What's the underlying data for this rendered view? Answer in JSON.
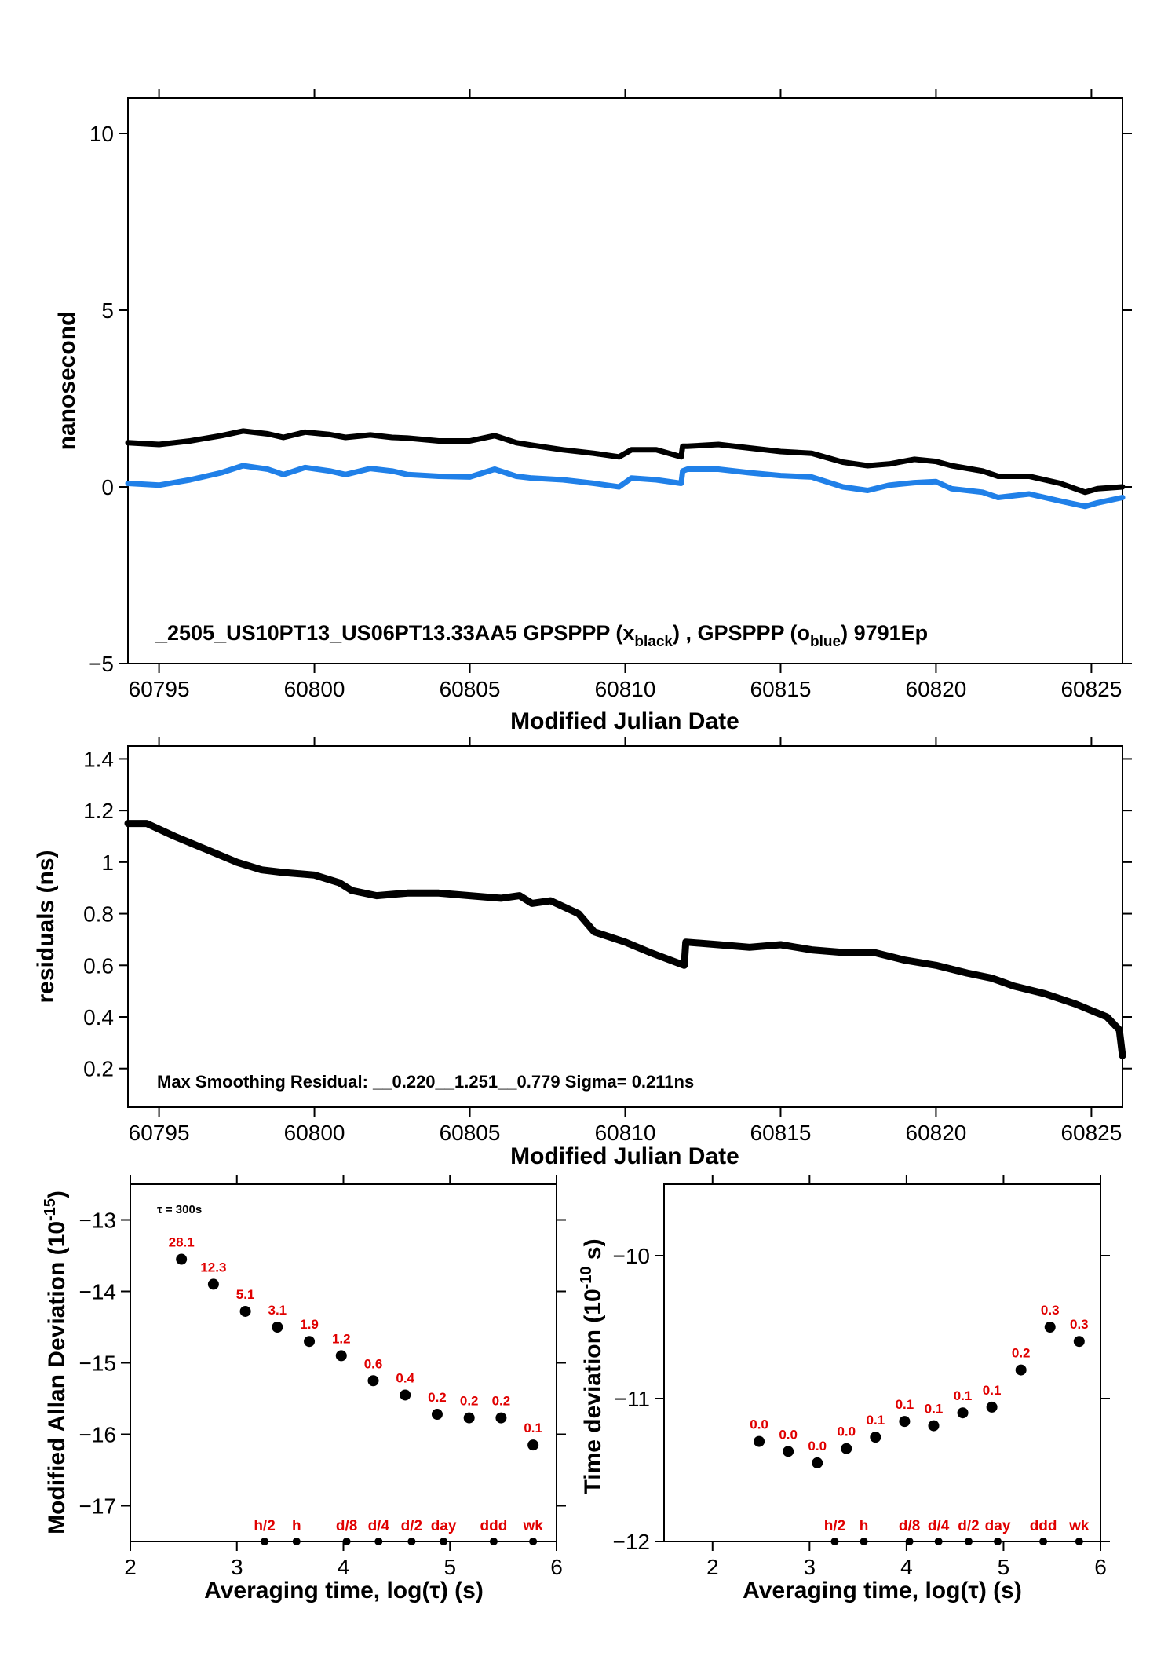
{
  "chart_data": [
    {
      "type": "line",
      "ylabel": "nanosecond",
      "xlabel": "Modified Julian Date",
      "xlim": [
        60794.0,
        60826.0
      ],
      "ylim": [
        -5,
        11
      ],
      "xticks": [
        60795,
        60800,
        60805,
        60810,
        60815,
        60820,
        60825
      ],
      "yticks": [
        -5,
        0,
        5,
        10
      ],
      "annotation_prefix": "_2505_US10PT13_US06PT13.33AA5     GPSPPP (x",
      "annotation_sub1": "black",
      "annotation_mid": ") ,  GPSPPP (o",
      "annotation_sub2": "blue",
      "annotation_suffix": ")  9791Ep",
      "series": [
        {
          "color": "#000000",
          "x": [
            60794.0,
            60795.0,
            60796.0,
            60797.0,
            60797.7,
            60798.5,
            60799.0,
            60799.7,
            60800.5,
            60801.0,
            60801.8,
            60802.5,
            60803.0,
            60804.0,
            60805.0,
            60805.8,
            60806.5,
            60807.0,
            60808.0,
            60809.0,
            60809.8,
            60810.2,
            60811.0,
            60811.8,
            60811.85,
            60812.0,
            60813.0,
            60814.0,
            60815.0,
            60816.0,
            60817.0,
            60817.8,
            60818.5,
            60819.3,
            60820.0,
            60820.5,
            60821.5,
            60822.0,
            60823.0,
            60824.0,
            60824.8,
            60825.2,
            60826.0
          ],
          "y": [
            1.25,
            1.2,
            1.3,
            1.45,
            1.58,
            1.5,
            1.4,
            1.55,
            1.48,
            1.4,
            1.47,
            1.4,
            1.38,
            1.3,
            1.3,
            1.45,
            1.25,
            1.18,
            1.05,
            0.95,
            0.85,
            1.05,
            1.05,
            0.85,
            1.15,
            1.15,
            1.2,
            1.1,
            1.0,
            0.95,
            0.7,
            0.6,
            0.65,
            0.78,
            0.72,
            0.6,
            0.45,
            0.3,
            0.3,
            0.1,
            -0.15,
            -0.05,
            0.0
          ]
        },
        {
          "color": "#2080e8",
          "x": [
            60794.0,
            60795.0,
            60796.0,
            60797.0,
            60797.7,
            60798.5,
            60799.0,
            60799.7,
            60800.5,
            60801.0,
            60801.8,
            60802.5,
            60803.0,
            60804.0,
            60805.0,
            60805.8,
            60806.5,
            60807.0,
            60808.0,
            60809.0,
            60809.8,
            60810.2,
            60811.0,
            60811.8,
            60811.85,
            60812.0,
            60813.0,
            60814.0,
            60815.0,
            60816.0,
            60817.0,
            60817.8,
            60818.5,
            60819.3,
            60820.0,
            60820.5,
            60821.5,
            60822.0,
            60823.0,
            60824.0,
            60824.8,
            60825.2,
            60826.0
          ],
          "y": [
            0.1,
            0.05,
            0.2,
            0.4,
            0.6,
            0.5,
            0.35,
            0.55,
            0.45,
            0.35,
            0.52,
            0.45,
            0.35,
            0.3,
            0.28,
            0.5,
            0.3,
            0.25,
            0.2,
            0.1,
            0.0,
            0.25,
            0.2,
            0.1,
            0.45,
            0.5,
            0.5,
            0.4,
            0.32,
            0.28,
            0.0,
            -0.1,
            0.05,
            0.12,
            0.15,
            -0.05,
            -0.15,
            -0.3,
            -0.2,
            -0.4,
            -0.55,
            -0.45,
            -0.3
          ]
        }
      ]
    },
    {
      "type": "line",
      "ylabel": "residuals (ns)",
      "xlabel": "Modified Julian Date",
      "xlim": [
        60794.0,
        60826.0
      ],
      "ylim": [
        0.05,
        1.45
      ],
      "xticks": [
        60795,
        60800,
        60805,
        60810,
        60815,
        60820,
        60825
      ],
      "yticks": [
        0.2,
        0.4,
        0.6,
        0.8,
        1.0,
        1.2,
        1.4
      ],
      "annotation": "Max Smoothing Residual: __0.220__1.251__0.779  Sigma= 0.211ns",
      "series": [
        {
          "color": "#000000",
          "x": [
            60794.0,
            60794.6,
            60795.5,
            60796.5,
            60797.5,
            60798.3,
            60799.0,
            60800.0,
            60800.8,
            60801.2,
            60802.0,
            60803.0,
            60804.0,
            60805.0,
            60806.0,
            60806.6,
            60807.0,
            60807.6,
            60808.5,
            60809.0,
            60810.0,
            60810.8,
            60811.9,
            60811.95,
            60813.0,
            60814.0,
            60815.0,
            60816.0,
            60817.0,
            60818.0,
            60819.0,
            60820.0,
            60821.0,
            60821.8,
            60822.5,
            60823.5,
            60824.5,
            60825.5,
            60825.9,
            60826.0
          ],
          "y": [
            1.15,
            1.15,
            1.1,
            1.05,
            1.0,
            0.97,
            0.96,
            0.95,
            0.92,
            0.89,
            0.87,
            0.88,
            0.88,
            0.87,
            0.86,
            0.87,
            0.84,
            0.85,
            0.8,
            0.73,
            0.69,
            0.65,
            0.6,
            0.69,
            0.68,
            0.67,
            0.68,
            0.66,
            0.65,
            0.65,
            0.62,
            0.6,
            0.57,
            0.55,
            0.52,
            0.49,
            0.45,
            0.4,
            0.35,
            0.25
          ]
        }
      ]
    },
    {
      "type": "scatter",
      "ylabel": "Modified Allan Deviation (10",
      "ylabel_sup": "-15",
      "ylabel_end": ")",
      "xlabel": "Averaging time, log(τ) (s)",
      "xlim": [
        2,
        6
      ],
      "ylim": [
        -17.5,
        -12.5
      ],
      "xticks": [
        2,
        3,
        4,
        5,
        6
      ],
      "yticks": [
        -17,
        -16,
        -15,
        -14,
        -13
      ],
      "tau_note": "τ = 300s",
      "x": [
        2.48,
        2.78,
        3.08,
        3.38,
        3.68,
        3.98,
        4.28,
        4.58,
        4.88,
        5.18,
        5.48,
        5.78
      ],
      "y": [
        -13.55,
        -13.9,
        -14.28,
        -14.5,
        -14.7,
        -14.9,
        -15.25,
        -15.45,
        -15.72,
        -15.77,
        -15.77,
        -16.15
      ],
      "point_labels": [
        "28.1",
        "12.3",
        "5.1",
        "3.1",
        "1.9",
        "1.2",
        "0.6",
        "0.4",
        "0.2",
        "0.2",
        "0.2",
        "0.1"
      ],
      "markers": [
        {
          "label": "h/2",
          "x": 3.26
        },
        {
          "label": "h",
          "x": 3.56
        },
        {
          "label": "d/8",
          "x": 4.03
        },
        {
          "label": "d/4",
          "x": 4.33
        },
        {
          "label": "d/2",
          "x": 4.64
        },
        {
          "label": "day",
          "x": 4.94
        },
        {
          "label": "ddd",
          "x": 5.41
        },
        {
          "label": "wk",
          "x": 5.78
        }
      ]
    },
    {
      "type": "scatter",
      "ylabel": "Time deviation (10",
      "ylabel_sup": "-10",
      "ylabel_end": " s)",
      "xlabel": "Averaging time, log(τ) (s)",
      "xlim": [
        1.5,
        6
      ],
      "ylim": [
        -12,
        -9.5
      ],
      "xticks": [
        2,
        3,
        4,
        5,
        6
      ],
      "yticks": [
        -12,
        -11,
        -10
      ],
      "x": [
        2.48,
        2.78,
        3.08,
        3.38,
        3.68,
        3.98,
        4.28,
        4.58,
        4.88,
        5.18,
        5.48,
        5.78
      ],
      "y": [
        -11.3,
        -11.37,
        -11.45,
        -11.35,
        -11.27,
        -11.16,
        -11.19,
        -11.1,
        -11.06,
        -10.8,
        -10.5,
        -10.6
      ],
      "point_labels": [
        "0.0",
        "0.0",
        "0.0",
        "0.0",
        "0.1",
        "0.1",
        "0.1",
        "0.1",
        "0.1",
        "0.2",
        "0.3",
        "0.3"
      ],
      "markers": [
        {
          "label": "h/2",
          "x": 3.26
        },
        {
          "label": "h",
          "x": 3.56
        },
        {
          "label": "d/8",
          "x": 4.03
        },
        {
          "label": "d/4",
          "x": 4.33
        },
        {
          "label": "d/2",
          "x": 4.64
        },
        {
          "label": "day",
          "x": 4.94
        },
        {
          "label": "ddd",
          "x": 5.41
        },
        {
          "label": "wk",
          "x": 5.78
        }
      ]
    }
  ]
}
